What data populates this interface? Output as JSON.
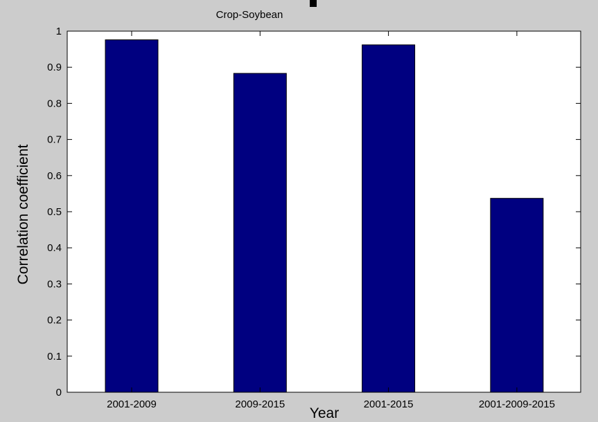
{
  "chart_data": {
    "type": "bar",
    "title": "Crop-Soybean",
    "xlabel": "Year",
    "ylabel": "Correlation coefficient",
    "categories": [
      "2001-2009",
      "2009-2015",
      "2001-2015",
      "2001-2009-2015"
    ],
    "values": [
      0.976,
      0.883,
      0.962,
      0.537
    ],
    "ylim": [
      0,
      1
    ],
    "yticks": [
      "0",
      "0.1",
      "0.2",
      "0.3",
      "0.4",
      "0.5",
      "0.6",
      "0.7",
      "0.8",
      "0.9",
      "1"
    ],
    "grid": false,
    "legend": "none"
  },
  "colors": {
    "bar_fill": "#000080",
    "figure_background": "#cccccc",
    "axes_background": "#ffffff",
    "axis_color": "#000000"
  },
  "icons": {
    "title_marker": "square-marker-icon"
  }
}
